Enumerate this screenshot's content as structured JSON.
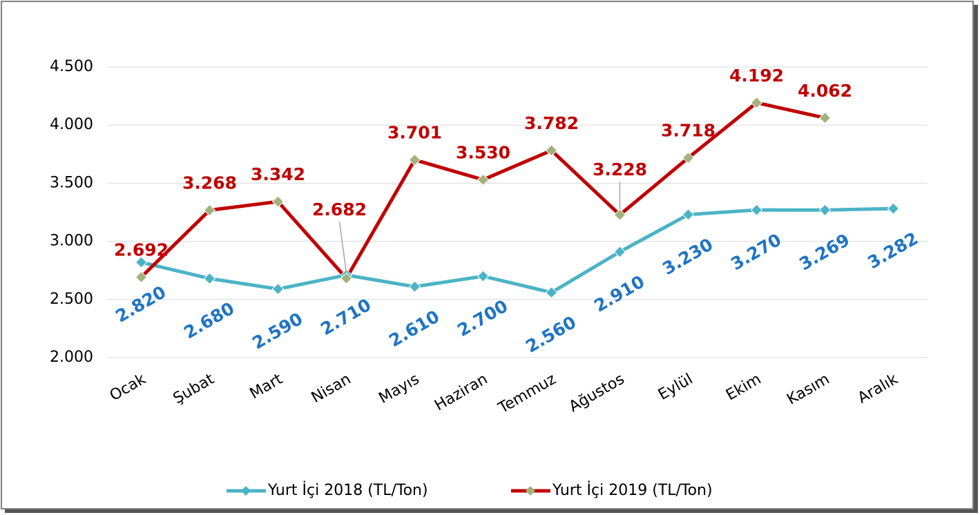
{
  "chart_data": {
    "type": "line",
    "categories": [
      "Ocak",
      "Şubat",
      "Mart",
      "Nisan",
      "Mayıs",
      "Haziran",
      "Temmuz",
      "Ağustos",
      "Eylül",
      "Ekim",
      "Kasım",
      "Aralık"
    ],
    "series": [
      {
        "name": "Yurt İçi 2018 (TL/Ton)",
        "color": "#4bb3c6",
        "marker_color": "#4bb3c6",
        "label_color": "#1f74c4",
        "values": [
          2820,
          2680,
          2590,
          2710,
          2610,
          2700,
          2560,
          2910,
          3230,
          3270,
          3269,
          3282
        ],
        "value_labels": [
          "2.820",
          "2.680",
          "2.590",
          "2.710",
          "2.610",
          "2.700",
          "2.560",
          "2.910",
          "3.230",
          "3.270",
          "3.269",
          "3.282"
        ]
      },
      {
        "name": "Yurt İçi 2019 (TL/Ton)",
        "color": "#c00000",
        "marker_color": "#a1b27a",
        "label_color": "#c00000",
        "values": [
          2692,
          3268,
          3342,
          2682,
          3701,
          3530,
          3782,
          3228,
          3718,
          4192,
          4062,
          null
        ],
        "value_labels": [
          "2.692",
          "3.268",
          "3.342",
          "2.682",
          "3.701",
          "3.530",
          "3.782",
          "3.228",
          "3.718",
          "4.192",
          "4.062",
          null
        ]
      }
    ],
    "ylim": [
      2000,
      4500
    ],
    "yticks": [
      {
        "value": 2000,
        "label": "2.000"
      },
      {
        "value": 2500,
        "label": "2.500"
      },
      {
        "value": 3000,
        "label": "3.000"
      },
      {
        "value": 3500,
        "label": "3.500"
      },
      {
        "value": 4000,
        "label": "4.000"
      },
      {
        "value": 4500,
        "label": "4.500"
      }
    ],
    "grid": true,
    "legend": "bottom"
  }
}
